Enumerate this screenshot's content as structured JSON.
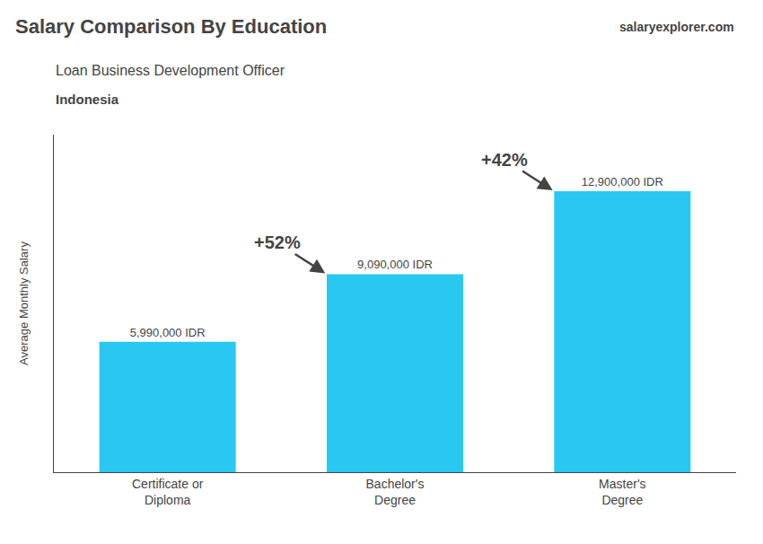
{
  "chart_data": {
    "type": "bar",
    "title": "Salary Comparison By Education",
    "subtitle": "Loan Business Development Officer",
    "ylabel": "Average Monthly Salary",
    "categories": [
      "Certificate or\nDiploma",
      "Bachelor's\nDegree",
      "Master's\nDegree"
    ],
    "values": [
      5990000,
      9090000,
      12900000
    ],
    "value_labels": [
      "5,990,000 IDR",
      "9,090,000 IDR",
      "12,900,000 IDR"
    ],
    "data_labels": true,
    "color": "#29c8f0",
    "ylim": [
      0,
      15500000
    ],
    "yticks": [],
    "tick_labels": "x",
    "grid": false,
    "annotations": [
      {
        "text": "Indonesia"
      },
      {
        "text": "salaryexplorer.com"
      },
      {
        "text": "+52%",
        "from": "Certificate or\nDiploma",
        "to": "Bachelor's\nDegree"
      },
      {
        "text": "+42%",
        "from": "Bachelor's\nDegree",
        "to": "Master's\nDegree"
      }
    ]
  }
}
